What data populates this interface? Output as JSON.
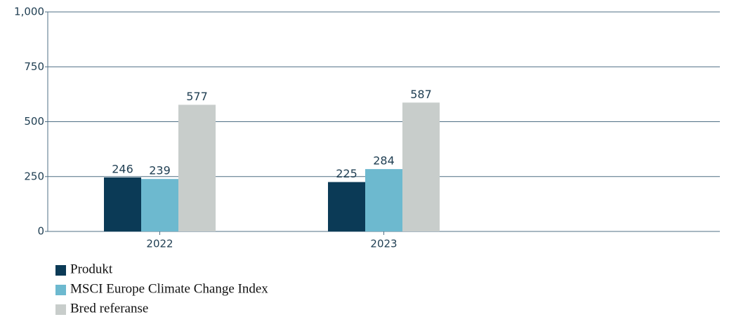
{
  "chart_data": {
    "type": "bar",
    "categories": [
      "2022",
      "2023",
      null
    ],
    "series": [
      {
        "name": "Produkt",
        "color": "#0b3a56",
        "values": [
          246,
          225,
          null
        ]
      },
      {
        "name": "MSCI Europe Climate Change Index",
        "color": "#6db9cf",
        "values": [
          239,
          284,
          null
        ]
      },
      {
        "name": "Bred referanse",
        "color": "#c8cdcb",
        "values": [
          577,
          587,
          null
        ]
      }
    ],
    "ylim": [
      0,
      1000
    ],
    "yticks": [
      0,
      250,
      500,
      750,
      {
        "value": 1000,
        "label": "1,000"
      }
    ],
    "grid": true,
    "legend": "bottom"
  }
}
